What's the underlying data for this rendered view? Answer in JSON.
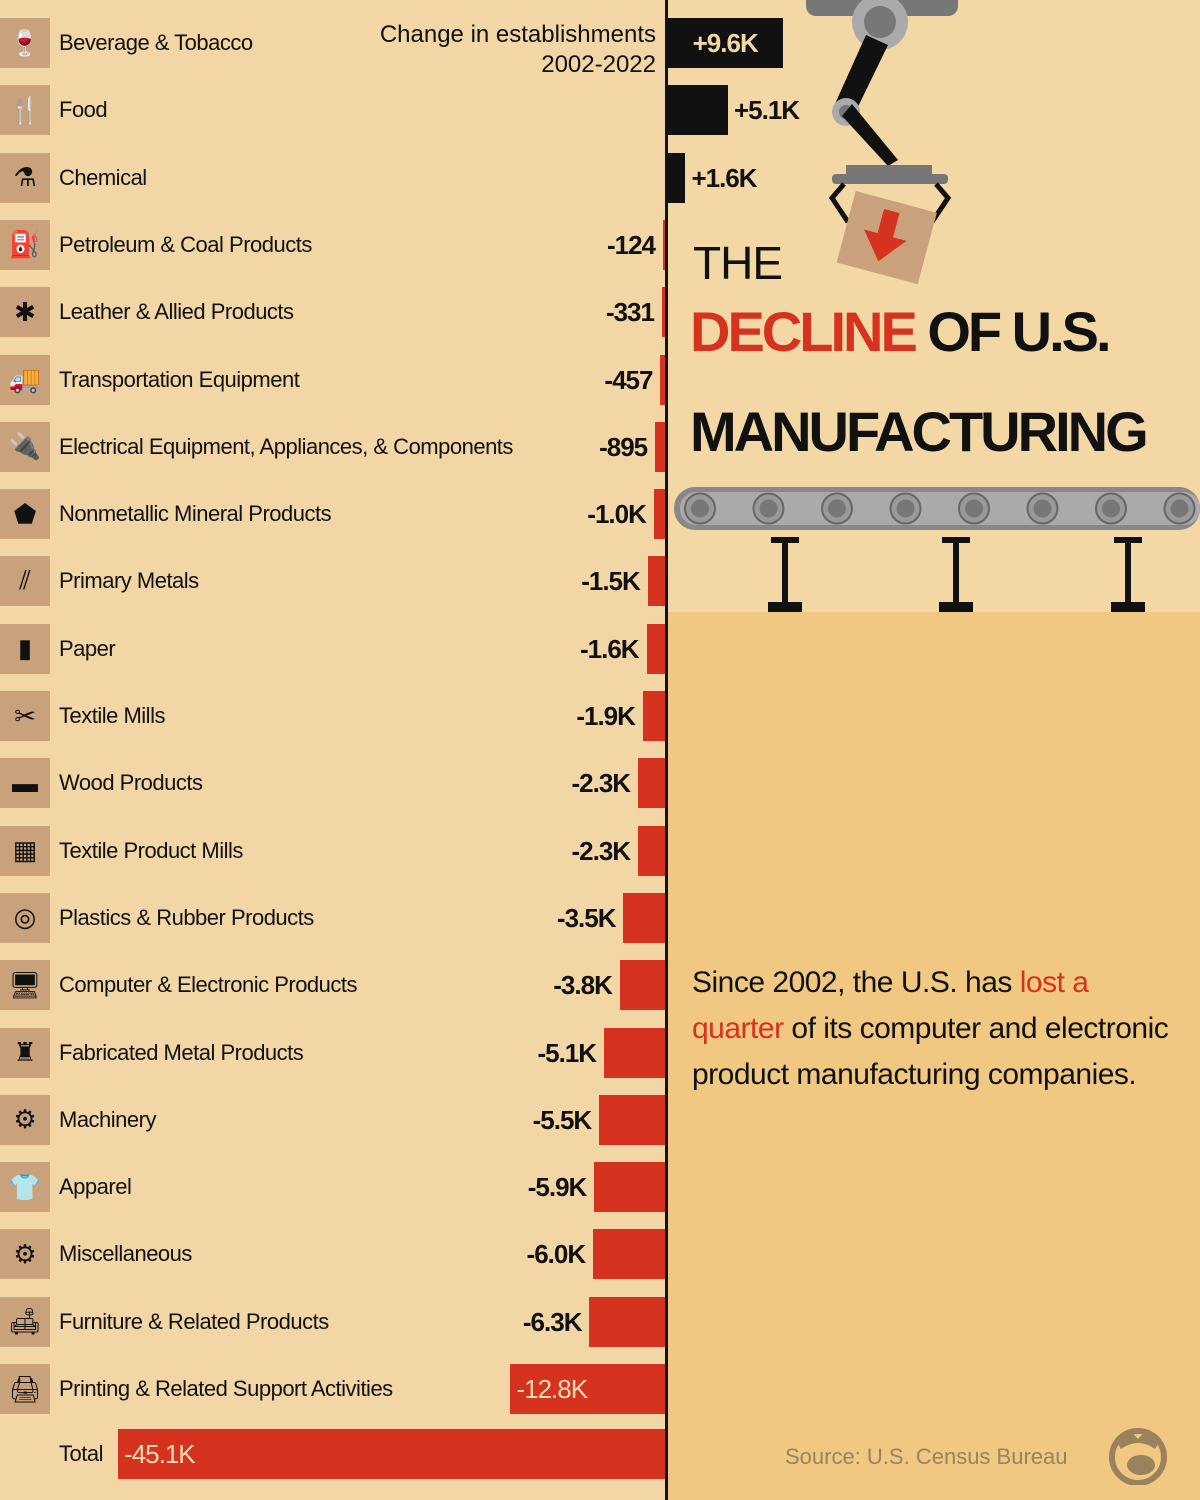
{
  "title": {
    "line1": "THE",
    "highlight": "DECLINE",
    "line2_rest": " OF U.S.",
    "line3": "MANUFACTURING"
  },
  "header": {
    "line1": "Change in establishments",
    "line2": "2002-2022"
  },
  "note": {
    "part1": "Since 2002, the U.S. has ",
    "highlight": "lost a quarter",
    "part2": " of its computer and electronic product manufacturing companies."
  },
  "source": "Source: U.S. Census Bureau",
  "colors": {
    "positive": "#111111",
    "negative": "#d5321f",
    "background": "#f2d6a5",
    "panel": "#f0c882",
    "icon_box": "#c9a27c"
  },
  "chart_data": {
    "type": "bar",
    "orientation": "horizontal",
    "unit": "thousands of establishments",
    "categories": [
      "Beverage & Tobacco",
      "Food",
      "Chemical",
      "Petroleum & Coal Products",
      "Leather & Allied Products",
      "Transportation Equipment",
      "Electrical Equipment, Appliances, & Components",
      "Nonmetallic Mineral Products",
      "Primary Metals",
      "Paper",
      "Textile Mills",
      "Wood Products",
      "Textile Product Mills",
      "Plastics & Rubber Products",
      "Computer & Electronic Products",
      "Fabricated Metal Products",
      "Machinery",
      "Apparel",
      "Miscellaneous",
      "Furniture & Related Products",
      "Printing & Related Support Activities"
    ],
    "values": [
      9.6,
      5.1,
      1.6,
      -0.124,
      -0.331,
      -0.457,
      -0.895,
      -1.0,
      -1.5,
      -1.6,
      -1.9,
      -2.3,
      -2.3,
      -3.5,
      -3.8,
      -5.1,
      -5.5,
      -5.9,
      -6.0,
      -6.3,
      -12.8
    ],
    "labels": [
      "+9.6K",
      "+5.1K",
      "+1.6K",
      "-124",
      "-331",
      "-457",
      "-895",
      "-1.0K",
      "-1.5K",
      "-1.6K",
      "-1.9K",
      "-2.3K",
      "-2.3K",
      "-3.5K",
      "-3.8K",
      "-5.1K",
      "-5.5K",
      "-5.9K",
      "-6.0K",
      "-6.3K",
      "-12.8K"
    ],
    "icons": [
      "wine-glass-icon",
      "fork-knife-icon",
      "flask-icon",
      "oil-pump-icon",
      "leather-hide-icon",
      "truck-icon",
      "plug-icon",
      "mineral-icon",
      "metal-bars-icon",
      "paper-icon",
      "sewing-machine-icon",
      "wood-plank-icon",
      "textile-icon",
      "rubber-ring-icon",
      "computer-icon",
      "metal-part-icon",
      "robot-arm-icon",
      "shirt-icon",
      "gear-icon",
      "armchair-icon",
      "printer-icon"
    ],
    "total": {
      "label": "Total",
      "value": -45.1,
      "value_label": "-45.1K"
    }
  }
}
